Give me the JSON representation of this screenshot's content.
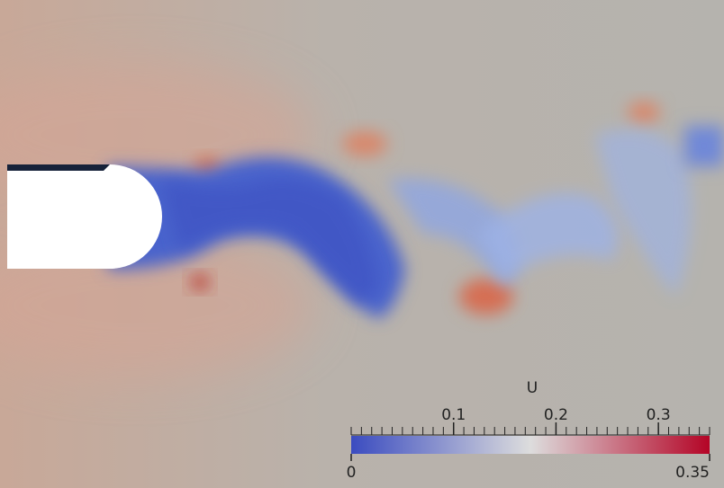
{
  "colorbar": {
    "title": "U",
    "range": [
      0,
      0.35
    ],
    "ticks": [
      0.1,
      0.2,
      0.3
    ],
    "minor_tick_step": 0.01,
    "colors": [
      "#3b4cc0",
      "#dddddd",
      "#b40426"
    ]
  }
}
